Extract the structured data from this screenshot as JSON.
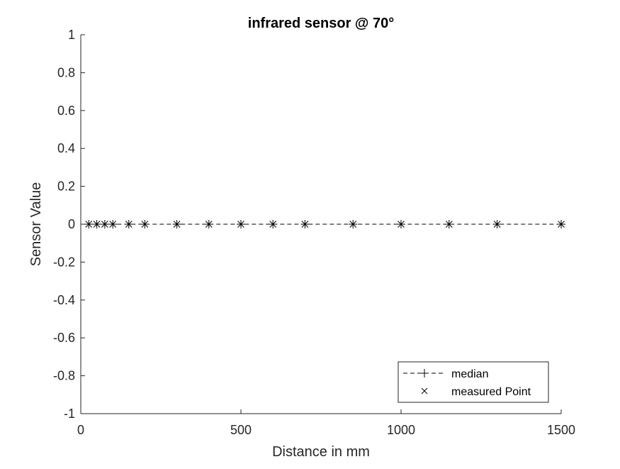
{
  "chart_data": {
    "type": "line",
    "title": "infrared sensor @ 70°",
    "xlabel": "Distance in mm",
    "ylabel": "Sensor Value",
    "xlim": [
      0,
      1500
    ],
    "ylim": [
      -1,
      1
    ],
    "xticks": [
      "0",
      "500",
      "1000",
      "1500"
    ],
    "yticks": [
      "-1",
      "-0.8",
      "-0.6",
      "-0.4",
      "-0.2",
      "0",
      "0.2",
      "0.4",
      "0.6",
      "0.8",
      "1"
    ],
    "grid": false,
    "legend_position": "bottom-right",
    "x": [
      25,
      50,
      75,
      100,
      150,
      200,
      300,
      400,
      500,
      600,
      700,
      850,
      1000,
      1150,
      1300,
      1500
    ],
    "series": [
      {
        "name": "median",
        "style": "dashed line with + markers",
        "color": "#000000",
        "values": [
          0,
          0,
          0,
          0,
          0,
          0,
          0,
          0,
          0,
          0,
          0,
          0,
          0,
          0,
          0,
          0
        ]
      },
      {
        "name": "measured Point",
        "style": "x markers",
        "color": "#000000",
        "values": [
          0,
          0,
          0,
          0,
          0,
          0,
          0,
          0,
          0,
          0,
          0,
          0,
          0,
          0,
          0,
          0
        ]
      }
    ]
  }
}
